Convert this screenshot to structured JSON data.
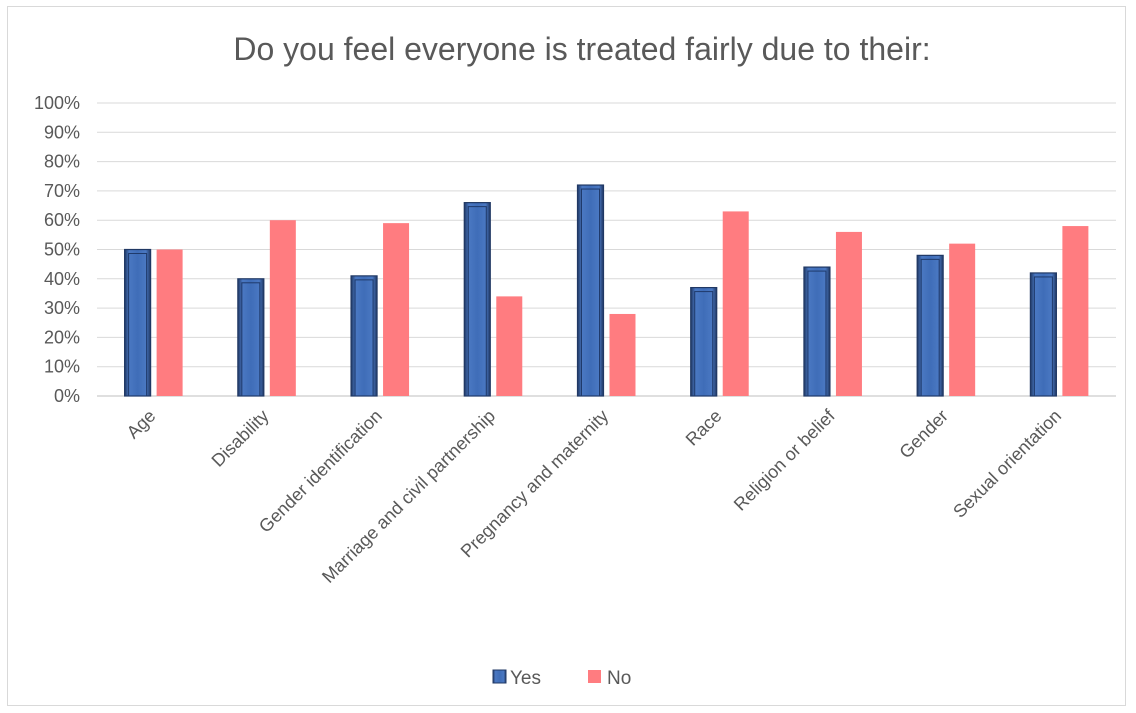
{
  "chart_data": {
    "type": "bar",
    "title": "Do you feel everyone is treated fairly due to their:",
    "categories": [
      "Age",
      "Disability",
      "Gender identification",
      "Marriage and civil partnership",
      "Pregnancy and maternity",
      "Race",
      "Religion or belief",
      "Gender",
      "Sexual orientation"
    ],
    "series": [
      {
        "name": "Yes",
        "values": [
          50,
          40,
          41,
          66,
          72,
          37,
          44,
          48,
          42
        ],
        "color": "#4472c4"
      },
      {
        "name": "No",
        "values": [
          50,
          60,
          59,
          34,
          28,
          63,
          56,
          52,
          58
        ],
        "color": "#ff7c80"
      }
    ],
    "y_ticks": [
      "0%",
      "10%",
      "20%",
      "30%",
      "40%",
      "50%",
      "60%",
      "70%",
      "80%",
      "90%",
      "100%"
    ],
    "ylim": [
      0,
      100
    ],
    "grid": true,
    "legend_position": "bottom"
  }
}
